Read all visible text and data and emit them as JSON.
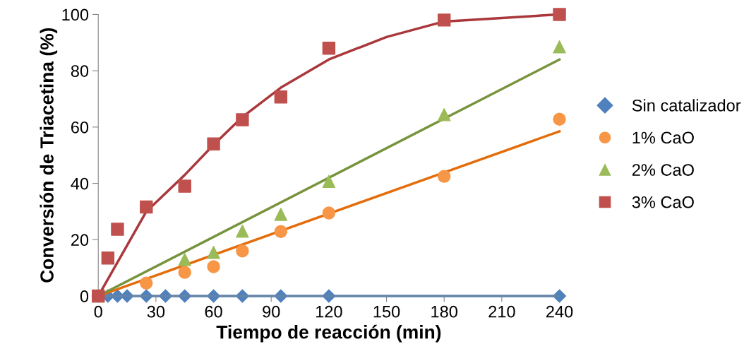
{
  "chart_data": {
    "type": "scatter",
    "xlabel": "Tiempo de reacción (min)",
    "ylabel": "Conversión de Triacetina (%)",
    "xlim": [
      0,
      240
    ],
    "xticks": [
      0,
      30,
      60,
      90,
      120,
      150,
      180,
      210,
      240
    ],
    "ylim": [
      0,
      100
    ],
    "yticks": [
      0,
      20,
      40,
      60,
      80,
      100
    ],
    "grid": false,
    "legend": "right",
    "series": [
      {
        "name": "Sin catalizador",
        "type": "line",
        "marker": "diamond",
        "color": "#4f81bd",
        "x": [
          0,
          5,
          10,
          15,
          25,
          35,
          45,
          60,
          75,
          95,
          120,
          240
        ],
        "values": [
          0,
          0,
          0,
          0,
          0,
          0,
          0,
          0,
          0,
          0,
          0,
          0
        ]
      },
      {
        "name": "1% CaO",
        "type": "scatter",
        "marker": "circle",
        "color": "#f79646",
        "x": [
          25,
          45,
          60,
          75,
          95,
          120,
          180,
          240
        ],
        "values": [
          4.6,
          8.4,
          10.4,
          16,
          22.9,
          29.5,
          42.5,
          62.8
        ]
      },
      {
        "name": "2% CaO",
        "type": "scatter",
        "marker": "triangle",
        "color": "#9bbb59",
        "x": [
          0,
          45,
          60,
          75,
          95,
          120,
          180,
          240
        ],
        "values": [
          0,
          13,
          15.5,
          23,
          29,
          40.7,
          64.4,
          88.5
        ]
      },
      {
        "name": "3% CaO",
        "marker": "square",
        "color": "#c0504d",
        "x": [
          0,
          5,
          10,
          25,
          45,
          60,
          75,
          95,
          120,
          180,
          240
        ],
        "values": [
          0,
          13.5,
          23.7,
          31.6,
          39,
          54,
          62.6,
          70.7,
          88,
          98,
          100
        ]
      },
      {
        "type": "line",
        "marker": "none",
        "color": "#e46c0a",
        "x": [
          0,
          240
        ],
        "values": [
          0,
          58.5
        ]
      },
      {
        "type": "line",
        "marker": "none",
        "color": "#77933c",
        "x": [
          0,
          240
        ],
        "values": [
          0,
          84
        ]
      },
      {
        "type": "line",
        "marker": "none",
        "color": "#a9373b",
        "x": [
          0,
          15,
          25,
          45,
          60,
          75,
          95,
          120,
          150,
          180,
          240
        ],
        "values": [
          0,
          18,
          30,
          43,
          53.7,
          63.6,
          74,
          84,
          92,
          97.5,
          100
        ]
      }
    ]
  }
}
